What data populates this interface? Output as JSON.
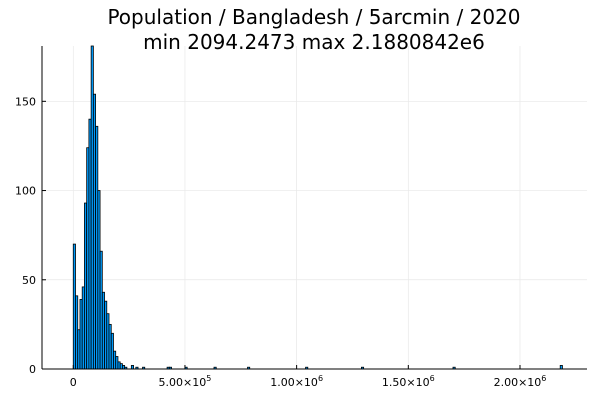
{
  "chart_data": {
    "type": "bar",
    "title": "Population / Bangladesh / 5arcmin / 2020",
    "subtitle": "min 2094.2473  max 2.1880842e6",
    "xlabel": "",
    "ylabel": "",
    "bar_color": "#009AFA",
    "grid": true,
    "legend": "none",
    "xlim": [
      -140000,
      2300000
    ],
    "ylim": [
      0,
      181
    ],
    "bin_width": 10000,
    "x_ticks": [
      {
        "value": 0,
        "label": "0",
        "mantissa": "",
        "exp": ""
      },
      {
        "value": 500000,
        "label": "",
        "mantissa": "5.00×10",
        "exp": "5"
      },
      {
        "value": 1000000,
        "label": "",
        "mantissa": "1.00×10",
        "exp": "6"
      },
      {
        "value": 1500000,
        "label": "",
        "mantissa": "1.50×10",
        "exp": "6"
      },
      {
        "value": 2000000,
        "label": "",
        "mantissa": "2.00×10",
        "exp": "6"
      }
    ],
    "y_ticks": [
      {
        "value": 0,
        "label": "0"
      },
      {
        "value": 50,
        "label": "50"
      },
      {
        "value": 100,
        "label": "100"
      },
      {
        "value": 150,
        "label": "150"
      }
    ],
    "bins": [
      {
        "x": 0,
        "count": 70
      },
      {
        "x": 10000,
        "count": 41
      },
      {
        "x": 20000,
        "count": 22
      },
      {
        "x": 30000,
        "count": 39
      },
      {
        "x": 40000,
        "count": 46
      },
      {
        "x": 50000,
        "count": 93
      },
      {
        "x": 60000,
        "count": 124
      },
      {
        "x": 70000,
        "count": 140
      },
      {
        "x": 80000,
        "count": 181
      },
      {
        "x": 90000,
        "count": 154
      },
      {
        "x": 100000,
        "count": 136
      },
      {
        "x": 110000,
        "count": 100
      },
      {
        "x": 120000,
        "count": 66
      },
      {
        "x": 130000,
        "count": 43
      },
      {
        "x": 140000,
        "count": 38
      },
      {
        "x": 150000,
        "count": 31
      },
      {
        "x": 160000,
        "count": 25
      },
      {
        "x": 170000,
        "count": 20
      },
      {
        "x": 180000,
        "count": 10
      },
      {
        "x": 190000,
        "count": 7
      },
      {
        "x": 200000,
        "count": 4
      },
      {
        "x": 210000,
        "count": 3
      },
      {
        "x": 220000,
        "count": 2
      },
      {
        "x": 230000,
        "count": 1
      },
      {
        "x": 260000,
        "count": 2
      },
      {
        "x": 280000,
        "count": 1
      },
      {
        "x": 310000,
        "count": 1
      },
      {
        "x": 420000,
        "count": 1
      },
      {
        "x": 430000,
        "count": 1
      },
      {
        "x": 500000,
        "count": 1
      },
      {
        "x": 630000,
        "count": 1
      },
      {
        "x": 780000,
        "count": 1
      },
      {
        "x": 1040000,
        "count": 1
      },
      {
        "x": 1290000,
        "count": 1
      },
      {
        "x": 1700000,
        "count": 1
      },
      {
        "x": 2180000,
        "count": 2
      }
    ]
  }
}
